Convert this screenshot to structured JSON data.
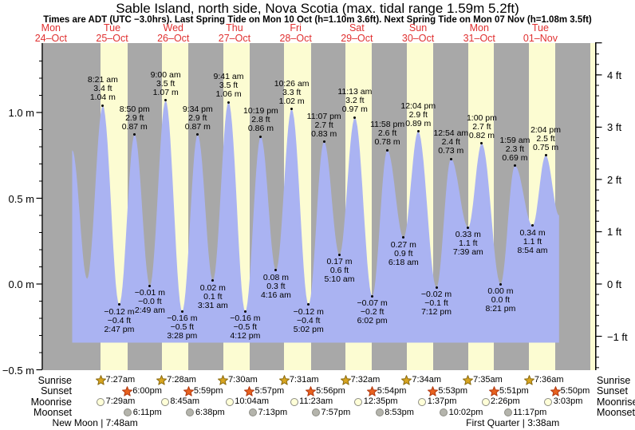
{
  "title": "Sable Island, north side, Nova Scotia (max. tidal range 1.59m 5.2ft)",
  "subtitle": "Times are ADT (UTC −3.0hrs). Last Spring Tide on Mon 10 Oct (h=1.10m 3.6ft). Next Spring Tide on Mon 07 Nov (h=1.08m 3.5ft)",
  "days": [
    {
      "dow": "Mon",
      "date": "24–Oct"
    },
    {
      "dow": "Tue",
      "date": "25–Oct"
    },
    {
      "dow": "Wed",
      "date": "26–Oct"
    },
    {
      "dow": "Thu",
      "date": "27–Oct"
    },
    {
      "dow": "Fri",
      "date": "28–Oct"
    },
    {
      "dow": "Sat",
      "date": "29–Oct"
    },
    {
      "dow": "Sun",
      "date": "30–Oct"
    },
    {
      "dow": "Mon",
      "date": "31–Oct"
    },
    {
      "dow": "Tue",
      "date": "01–Nov"
    }
  ],
  "chart_data": {
    "type": "area",
    "title": "Sable Island, north side, Nova Scotia (max. tidal range 1.59m 5.2ft)",
    "ylabel_left_unit": "m",
    "ylabel_right_unit": "ft",
    "y_axis_left": {
      "values": [
        1.0,
        0.5,
        0.0,
        -0.5
      ],
      "labels": [
        "1.0 m",
        "0.5 m",
        "0.0 m",
        "−0.5 m"
      ],
      "minor_step": 0.1,
      "minor_range": [
        -0.5,
        1.3
      ]
    },
    "y_axis_right": {
      "values": [
        4,
        3,
        2,
        1,
        0,
        -1
      ],
      "labels": [
        "4 ft",
        "3 ft",
        "2 ft",
        "1 ft",
        "0 ft",
        "−1 ft"
      ],
      "minor_step": 0.2,
      "minor_range": [
        -1.6,
        4.4
      ]
    },
    "extremes": [
      {
        "day": 0,
        "hour": 20.35,
        "m": 0.78,
        "type": "high",
        "lines": null
      },
      {
        "day": 1,
        "hour": 2.2,
        "m": 0.03,
        "type": "low",
        "lines": null
      },
      {
        "day": 1,
        "hour": 8.35,
        "m": 1.04,
        "type": "high",
        "lines": [
          "8:21 am",
          "3.4 ft",
          "1.04 m"
        ]
      },
      {
        "day": 1,
        "hour": 14.783,
        "m": -0.12,
        "type": "low",
        "lines": [
          "−0.12 m",
          "−0.4 ft",
          "2:47 pm"
        ]
      },
      {
        "day": 1,
        "hour": 20.833,
        "m": 0.87,
        "type": "high",
        "lines": [
          "8:50 pm",
          "2.9 ft",
          "0.87 m"
        ]
      },
      {
        "day": 2,
        "hour": 2.817,
        "m": -0.01,
        "type": "low",
        "lines": [
          "−0.01 m",
          "−0.0 ft",
          "2:49 am"
        ]
      },
      {
        "day": 2,
        "hour": 9.0,
        "m": 1.07,
        "type": "high",
        "lines": [
          "9:00 am",
          "3.5 ft",
          "1.07 m"
        ]
      },
      {
        "day": 2,
        "hour": 15.467,
        "m": -0.16,
        "type": "low",
        "lines": [
          "−0.16 m",
          "−0.5 ft",
          "3:28 pm"
        ]
      },
      {
        "day": 2,
        "hour": 21.567,
        "m": 0.87,
        "type": "high",
        "lines": [
          "9:34 pm",
          "2.9 ft",
          "0.87 m"
        ]
      },
      {
        "day": 3,
        "hour": 3.517,
        "m": 0.02,
        "type": "low",
        "lines": [
          "0.02 m",
          "0.1 ft",
          "3:31 am"
        ]
      },
      {
        "day": 3,
        "hour": 9.683,
        "m": 1.06,
        "type": "high",
        "lines": [
          "9:41 am",
          "3.5 ft",
          "1.06 m"
        ]
      },
      {
        "day": 3,
        "hour": 16.2,
        "m": -0.16,
        "type": "low",
        "lines": [
          "−0.16 m",
          "−0.5 ft",
          "4:12 pm"
        ]
      },
      {
        "day": 3,
        "hour": 22.317,
        "m": 0.86,
        "type": "high",
        "lines": [
          "10:19 pm",
          "2.8 ft",
          "0.86 m"
        ]
      },
      {
        "day": 4,
        "hour": 4.267,
        "m": 0.08,
        "type": "low",
        "lines": [
          "0.08 m",
          "0.3 ft",
          "4:16 am"
        ]
      },
      {
        "day": 4,
        "hour": 10.433,
        "m": 1.02,
        "type": "high",
        "lines": [
          "10:26 am",
          "3.3 ft",
          "1.02 m"
        ]
      },
      {
        "day": 4,
        "hour": 17.033,
        "m": -0.12,
        "type": "low",
        "lines": [
          "−0.12 m",
          "−0.4 ft",
          "5:02 pm"
        ]
      },
      {
        "day": 4,
        "hour": 23.117,
        "m": 0.83,
        "type": "high",
        "lines": [
          "11:07 pm",
          "2.7 ft",
          "0.83 m"
        ]
      },
      {
        "day": 5,
        "hour": 5.167,
        "m": 0.17,
        "type": "low",
        "lines": [
          "0.17 m",
          "0.6 ft",
          "5:10 am"
        ]
      },
      {
        "day": 5,
        "hour": 11.217,
        "m": 0.97,
        "type": "high",
        "lines": [
          "11:13 am",
          "3.2 ft",
          "0.97 m"
        ]
      },
      {
        "day": 5,
        "hour": 18.033,
        "m": -0.07,
        "type": "low",
        "lines": [
          "−0.07 m",
          "−0.2 ft",
          "6:02 pm"
        ]
      },
      {
        "day": 5,
        "hour": 23.967,
        "m": 0.78,
        "type": "high",
        "lines": [
          "11:58 pm",
          "2.6 ft",
          "0.78 m"
        ]
      },
      {
        "day": 6,
        "hour": 6.3,
        "m": 0.27,
        "type": "low",
        "lines": [
          "0.27 m",
          "0.9 ft",
          "6:18 am"
        ]
      },
      {
        "day": 6,
        "hour": 12.067,
        "m": 0.89,
        "type": "high",
        "lines": [
          "12:04 pm",
          "2.9 ft",
          "0.89 m"
        ]
      },
      {
        "day": 6,
        "hour": 19.2,
        "m": -0.02,
        "type": "low",
        "lines": [
          "−0.02 m",
          "−0.1 ft",
          "7:12 pm"
        ]
      },
      {
        "day": 7,
        "hour": 0.9,
        "m": 0.73,
        "type": "high",
        "lines": [
          "12:54 am",
          "2.4 ft",
          "0.73 m"
        ]
      },
      {
        "day": 7,
        "hour": 7.65,
        "m": 0.33,
        "type": "low",
        "lines": [
          "0.33 m",
          "1.1 ft",
          "7:39 am"
        ]
      },
      {
        "day": 7,
        "hour": 13.0,
        "m": 0.82,
        "type": "high",
        "lines": [
          "1:00 pm",
          "2.7 ft",
          "0.82 m"
        ]
      },
      {
        "day": 7,
        "hour": 20.35,
        "m": 0.0,
        "type": "low",
        "lines": [
          "0.00 m",
          "0.0 ft",
          "8:21 pm"
        ]
      },
      {
        "day": 8,
        "hour": 1.983,
        "m": 0.69,
        "type": "high",
        "lines": [
          "1:59 am",
          "2.3 ft",
          "0.69 m"
        ]
      },
      {
        "day": 8,
        "hour": 8.9,
        "m": 0.34,
        "type": "low",
        "lines": [
          "0.34 m",
          "1.1 ft",
          "8:54 am"
        ]
      },
      {
        "day": 8,
        "hour": 14.067,
        "m": 0.75,
        "type": "high",
        "lines": [
          "2:04 pm",
          "2.5 ft",
          "0.75 m"
        ]
      },
      {
        "day": 8,
        "hour": 19.3,
        "m": 0.4,
        "type": "end",
        "lines": null
      }
    ],
    "day_night_bands": [
      {
        "day": 1,
        "rise": 7.45,
        "set": 18.0
      },
      {
        "day": 2,
        "rise": 7.467,
        "set": 17.983
      },
      {
        "day": 3,
        "rise": 7.5,
        "set": 17.95
      },
      {
        "day": 4,
        "rise": 7.517,
        "set": 17.933
      },
      {
        "day": 5,
        "rise": 7.533,
        "set": 17.9
      },
      {
        "day": 6,
        "rise": 7.567,
        "set": 17.883
      },
      {
        "day": 7,
        "rise": 7.583,
        "set": 17.85
      },
      {
        "day": 8,
        "rise": 7.6,
        "set": 17.833
      },
      {
        "day": 9,
        "rise": 7.617,
        "set": null
      }
    ]
  },
  "almanac": {
    "row_labels": [
      "Sunrise",
      "Sunset",
      "Moonrise",
      "Moonset"
    ],
    "rows": {
      "sunrise": [
        {
          "day": 1,
          "hour": 7.45,
          "time": "7:27am"
        },
        {
          "day": 2,
          "hour": 7.467,
          "time": "7:28am"
        },
        {
          "day": 3,
          "hour": 7.5,
          "time": "7:30am"
        },
        {
          "day": 4,
          "hour": 7.517,
          "time": "7:31am"
        },
        {
          "day": 5,
          "hour": 7.533,
          "time": "7:32am"
        },
        {
          "day": 6,
          "hour": 7.567,
          "time": "7:34am"
        },
        {
          "day": 7,
          "hour": 7.583,
          "time": "7:35am"
        },
        {
          "day": 8,
          "hour": 7.6,
          "time": "7:36am"
        }
      ],
      "sunset": [
        {
          "day": 1,
          "hour": 18.0,
          "time": "6:00pm"
        },
        {
          "day": 2,
          "hour": 17.983,
          "time": "5:59pm"
        },
        {
          "day": 3,
          "hour": 17.95,
          "time": "5:57pm"
        },
        {
          "day": 4,
          "hour": 17.933,
          "time": "5:56pm"
        },
        {
          "day": 5,
          "hour": 17.9,
          "time": "5:54pm"
        },
        {
          "day": 6,
          "hour": 17.883,
          "time": "5:53pm"
        },
        {
          "day": 7,
          "hour": 17.85,
          "time": "5:51pm"
        },
        {
          "day": 8,
          "hour": 17.833,
          "time": "5:50pm"
        }
      ],
      "moonrise": [
        {
          "day": 1,
          "hour": 7.483,
          "time": "7:29am"
        },
        {
          "day": 2,
          "hour": 8.75,
          "time": "8:45am"
        },
        {
          "day": 3,
          "hour": 10.067,
          "time": "10:04am"
        },
        {
          "day": 4,
          "hour": 11.383,
          "time": "11:23am"
        },
        {
          "day": 5,
          "hour": 12.583,
          "time": "12:35pm"
        },
        {
          "day": 6,
          "hour": 13.617,
          "time": "1:37pm"
        },
        {
          "day": 7,
          "hour": 14.433,
          "time": "2:26pm"
        },
        {
          "day": 8,
          "hour": 15.05,
          "time": "3:03pm"
        }
      ],
      "moonset": [
        {
          "day": 1,
          "hour": 18.183,
          "time": "6:11pm"
        },
        {
          "day": 2,
          "hour": 18.633,
          "time": "6:38pm"
        },
        {
          "day": 3,
          "hour": 19.217,
          "time": "7:13pm"
        },
        {
          "day": 4,
          "hour": 19.95,
          "time": "7:57pm"
        },
        {
          "day": 5,
          "hour": 20.883,
          "time": "8:53pm"
        },
        {
          "day": 6,
          "hour": 22.033,
          "time": "10:02pm"
        },
        {
          "day": 7,
          "hour": 23.283,
          "time": "11:17pm"
        }
      ]
    },
    "notes": [
      {
        "text": "New Moon | 7:48am",
        "day": 1,
        "hour": 7.8
      },
      {
        "text": "First Quarter | 3:38am",
        "day": 8,
        "hour": 3.633
      }
    ]
  },
  "colors": {
    "day_band": "#fcfcd2",
    "night_band": "#a8a8a8",
    "tide_fill": "#aab3f2",
    "date_red": "#e03030",
    "sunrise_fill": "#d8a520",
    "sunrise_stroke": "#8a6a10",
    "sunset_fill": "#e8611e",
    "sunset_stroke": "#b03810",
    "moonrise_fill": "#ffffd8",
    "moonset_fill": "#b4b4ac",
    "moon_stroke": "#8c8c84"
  }
}
